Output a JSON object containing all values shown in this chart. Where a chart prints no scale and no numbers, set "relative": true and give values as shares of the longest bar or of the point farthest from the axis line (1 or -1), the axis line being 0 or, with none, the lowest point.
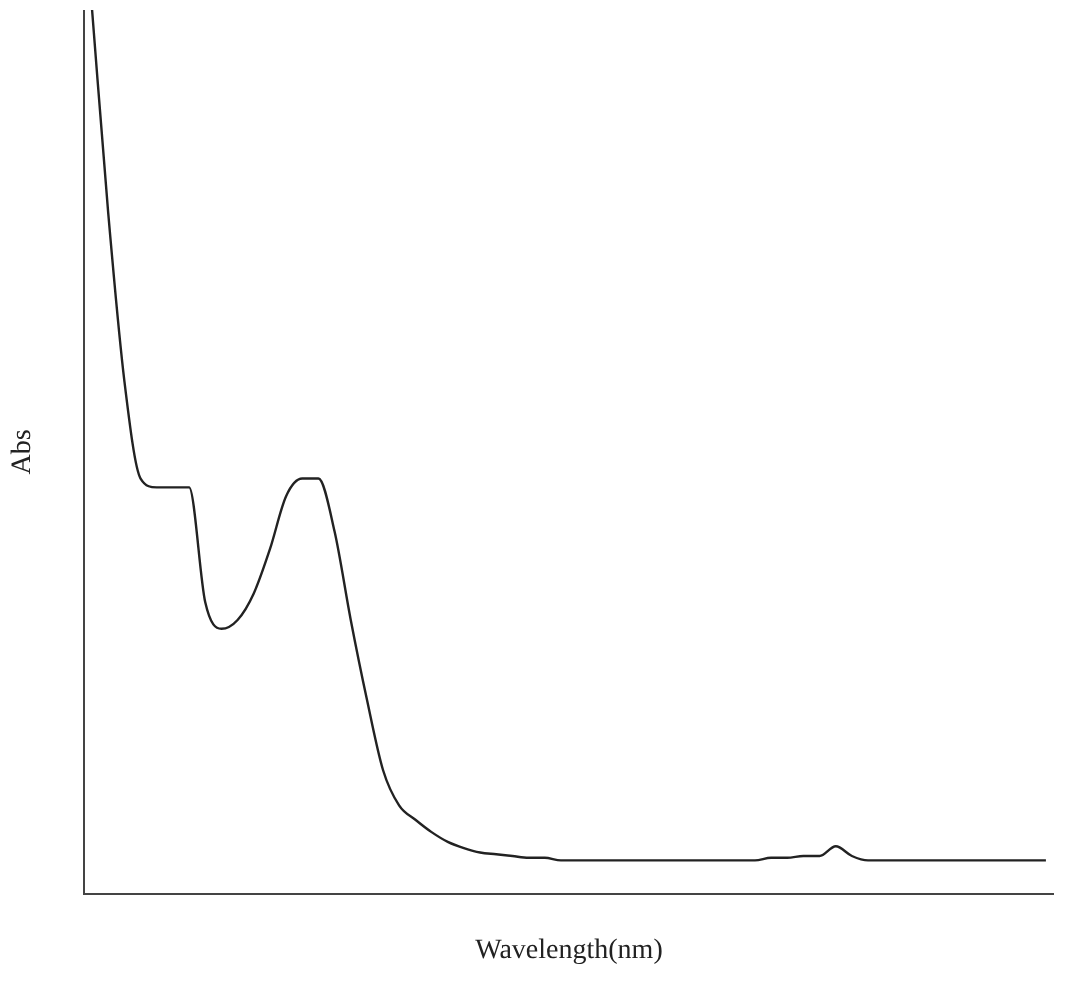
{
  "chart_data": {
    "type": "line",
    "relative": true,
    "xlabel": "Wavelength(nm)",
    "ylabel": "Abs",
    "color": "#222222",
    "marker": "none",
    "categories": [
      null,
      null,
      null,
      null,
      null,
      null,
      null,
      null,
      null,
      null,
      null,
      null,
      null,
      null,
      null,
      null,
      null,
      null,
      null,
      null,
      null,
      null,
      null,
      null,
      null,
      null,
      null,
      null,
      null,
      null,
      null,
      null,
      null,
      null,
      null,
      null,
      null,
      null,
      null,
      null,
      null,
      null,
      null,
      null,
      null,
      null,
      null,
      null,
      null,
      null,
      null,
      null,
      null,
      null,
      null,
      null,
      null,
      null,
      null,
      null
    ],
    "values": [
      1.0,
      0.77,
      0.58,
      0.47,
      0.46,
      0.46,
      0.46,
      0.33,
      0.3,
      0.31,
      0.34,
      0.39,
      0.45,
      0.47,
      0.47,
      0.41,
      0.31,
      0.22,
      0.14,
      0.1,
      0.084,
      0.07,
      0.059,
      0.052,
      0.047,
      0.045,
      0.043,
      0.041,
      0.041,
      0.038,
      0.038,
      0.038,
      0.038,
      0.038,
      0.038,
      0.038,
      0.038,
      0.038,
      0.038,
      0.038,
      0.038,
      0.038,
      0.041,
      0.041,
      0.043,
      0.043,
      0.054,
      0.043,
      0.038,
      0.038,
      0.038,
      0.038,
      0.038,
      0.038,
      0.038,
      0.038,
      0.038,
      0.038,
      0.038,
      0.038
    ]
  }
}
